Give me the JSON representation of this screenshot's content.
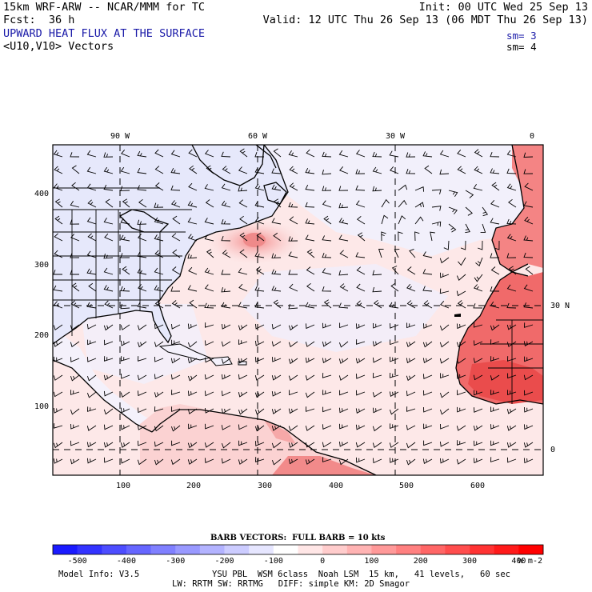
{
  "header": {
    "model_line": "15km WRF-ARW -- NCAR/MMM for TC",
    "init_line": "Init: 00 UTC Wed 25 Sep 13",
    "fcst_line": "Fcst:  36 h",
    "valid_line": "Valid: 12 UTC Thu 26 Sep 13 (06 MDT Thu 26 Sep 13)",
    "field_title": "UPWARD HEAT FLUX AT THE SURFACE",
    "vector_title": "<U10,V10> Vectors",
    "sm1": "sm= 3",
    "sm2": "sm= 4"
  },
  "map": {
    "top_labels": [
      "90 W",
      "60 W",
      "30 W",
      "0"
    ],
    "right_labels": [
      "30 N",
      "0"
    ],
    "left_labels": [
      "400",
      "300",
      "200",
      "100"
    ],
    "bottom_labels": [
      "100",
      "200",
      "300",
      "400",
      "500",
      "600"
    ],
    "colors": {
      "ocean_light_pos": "#fde4e4",
      "land_neg": "#e6e8fb",
      "land_hot": "#f46a6a",
      "land_hotter": "#ee4444",
      "coast": "#000000",
      "grid": "#000000"
    }
  },
  "legend": {
    "barb_title": "BARB VECTORS:  FULL BARB = 10 kts",
    "labels": [
      "-500",
      "-400",
      "-300",
      "-200",
      "-100",
      "0",
      "100",
      "200",
      "300",
      "400"
    ],
    "units": "W m-2",
    "colors": [
      "#1a1aff",
      "#3333ff",
      "#4d4dff",
      "#6666ff",
      "#8080ff",
      "#9999ff",
      "#b3b3ff",
      "#ccccff",
      "#e6e6ff",
      "#ffffff",
      "#ffe6e6",
      "#ffcccc",
      "#ffb3b3",
      "#ff9999",
      "#ff8080",
      "#ff6666",
      "#ff4d4d",
      "#ff3333",
      "#ff1a1a",
      "#ff0000"
    ]
  },
  "footer": {
    "model_info": "Model Info: V3.5",
    "physics_line": "YSU PBL  WSM 6class  Noah LSM  15 km,   41 levels,   60 sec",
    "rad_line": "LW: RRTM SW: RRTMG   DIFF: simple KM: 2D Smagor"
  }
}
